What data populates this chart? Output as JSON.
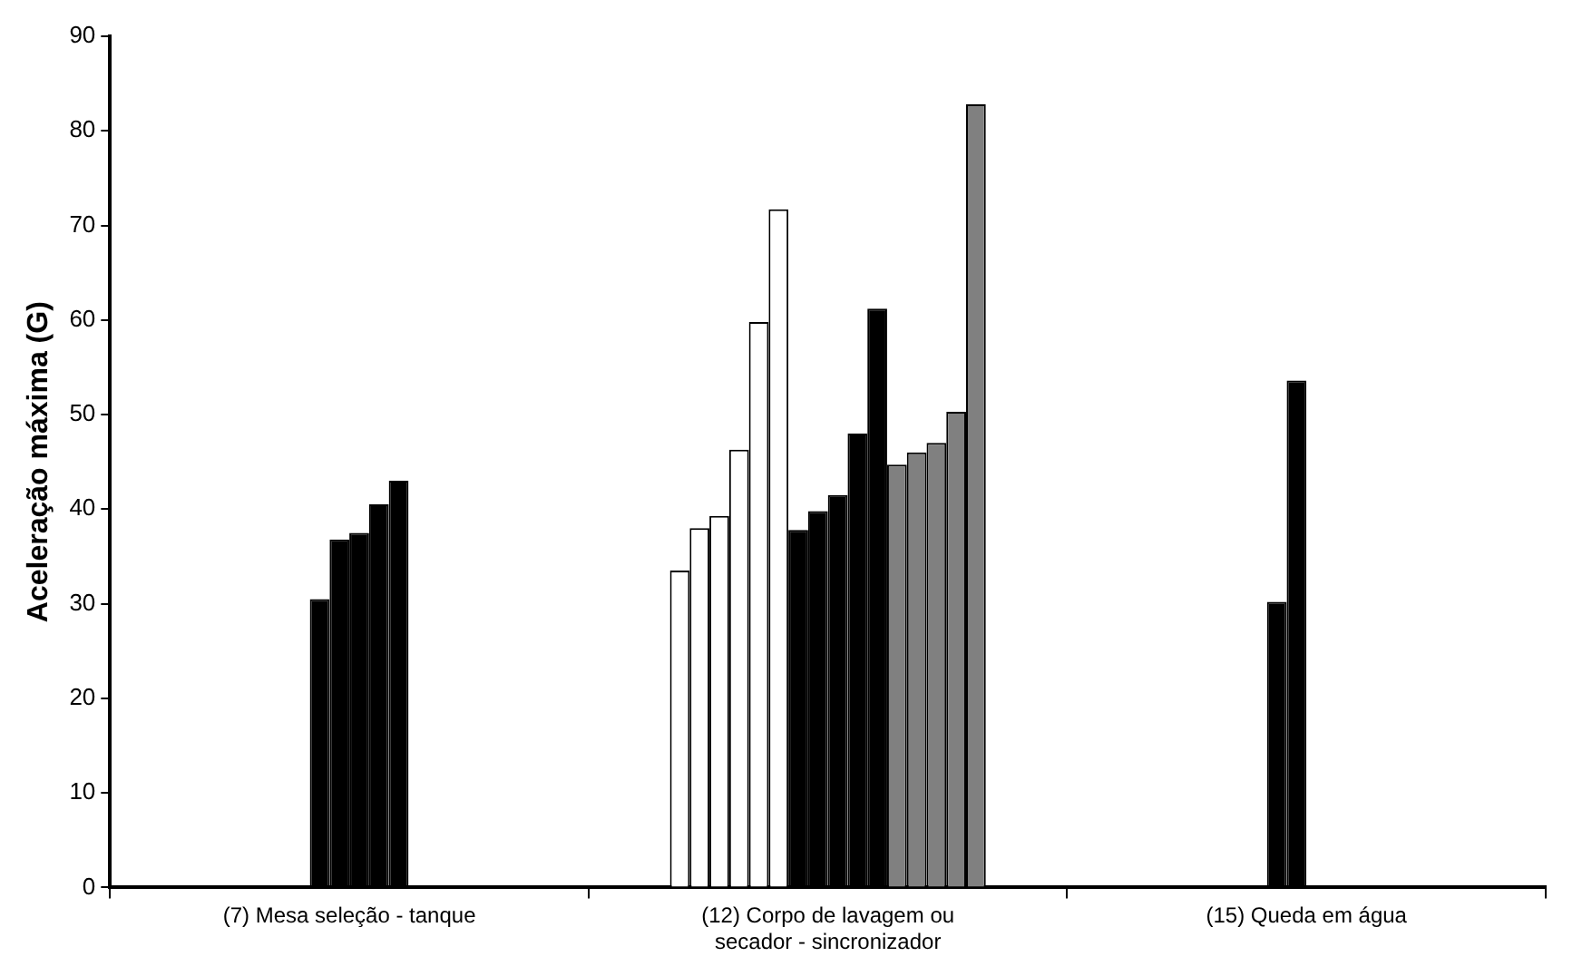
{
  "chart_data": {
    "type": "bar",
    "ylabel": "Aceleração máxima (G)",
    "categories": [
      "(7) Mesa seleção - tanque",
      "(12) Corpo de lavagem ou secador - sincronizador",
      "(15) Queda em água"
    ],
    "series": [
      {
        "color": "#ffffff",
        "values": [
          null,
          33.5,
          null
        ]
      },
      {
        "color": "#ffffff",
        "values": [
          null,
          38,
          null
        ]
      },
      {
        "color": "#ffffff",
        "values": [
          null,
          39.3,
          null
        ]
      },
      {
        "color": "#ffffff",
        "values": [
          null,
          46.3,
          null
        ]
      },
      {
        "color": "#ffffff",
        "values": [
          null,
          59.8,
          null
        ]
      },
      {
        "color": "#ffffff",
        "values": [
          null,
          71.7,
          null
        ]
      },
      {
        "color": "#000000",
        "values": [
          30.5,
          37.8,
          30.2
        ]
      },
      {
        "color": "#000000",
        "values": [
          36.8,
          39.8,
          53.6
        ]
      },
      {
        "color": "#000000",
        "values": [
          37.5,
          41.5,
          null
        ]
      },
      {
        "color": "#000000",
        "values": [
          40.5,
          48,
          null
        ]
      },
      {
        "color": "#000000",
        "values": [
          43,
          61.2,
          null
        ]
      },
      {
        "color": "#808080",
        "values": [
          null,
          44.7,
          null
        ]
      },
      {
        "color": "#808080",
        "values": [
          null,
          46,
          null
        ]
      },
      {
        "color": "#808080",
        "values": [
          null,
          47,
          null
        ]
      },
      {
        "color": "#808080",
        "values": [
          null,
          50.3,
          null
        ]
      },
      {
        "color": "#808080",
        "values": [
          null,
          82.8,
          null
        ]
      }
    ],
    "ylim": [
      0,
      90
    ],
    "yticks": [
      0,
      10,
      20,
      30,
      40,
      50,
      60,
      70,
      80,
      90
    ],
    "grid": false,
    "legend": false
  }
}
